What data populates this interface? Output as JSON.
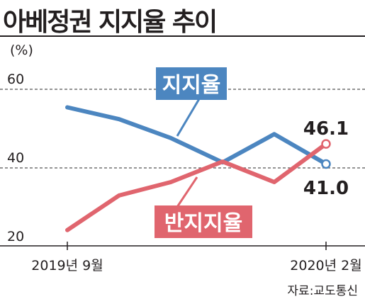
{
  "title": "아베정권 지지율 추이",
  "source": "자료:교도통신",
  "colors": {
    "approval": "#4c86c0",
    "disapproval": "#e0656e",
    "text": "#231f20",
    "grid": "#555555"
  },
  "chart_data": {
    "type": "line",
    "title": "아베정권 지지율 추이",
    "ylabel": "(%)",
    "ylim": [
      20,
      70
    ],
    "yticks": [
      "60",
      "40",
      "20"
    ],
    "grid": "dashed horizontal at 40 and 60",
    "legend": "inline labels",
    "x_start_label": "2019년 9월",
    "x_end_label": "2020년 2월",
    "series": [
      {
        "name": "지지율",
        "values": [
          55.4,
          52.4,
          47.6,
          41.4,
          48.6,
          41.0
        ]
      },
      {
        "name": "반지지율",
        "values": [
          24.2,
          33.0,
          36.4,
          41.6,
          36.4,
          46.1
        ]
      }
    ],
    "end_labels": {
      "approval": "41.0",
      "disapproval": "46.1"
    }
  }
}
